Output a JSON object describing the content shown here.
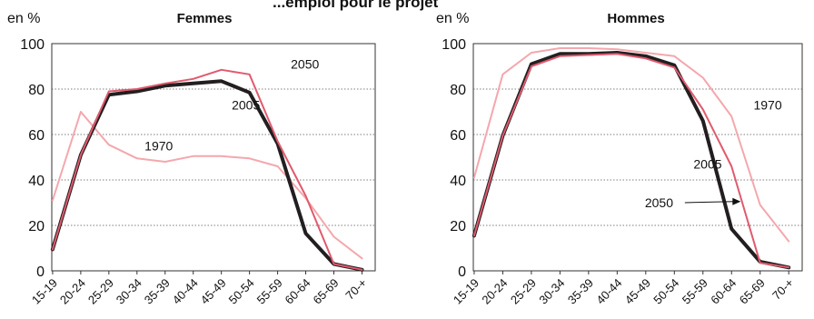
{
  "global_title_fragment": "...emploi pour le projet",
  "chart_data": [
    {
      "type": "line",
      "title": "Femmes",
      "ylabel": "en %",
      "xlabel": "",
      "ylim": [
        0,
        100
      ],
      "yticks": [
        0,
        20,
        40,
        60,
        80,
        100
      ],
      "categories": [
        "15-19",
        "20-24",
        "25-29",
        "30-34",
        "35-39",
        "40-44",
        "45-49",
        "50-54",
        "55-59",
        "60-64",
        "65-69",
        "70-+"
      ],
      "grid": true,
      "series": [
        {
          "name": "1970",
          "color": "#f4a7ad",
          "width": 2,
          "values": [
            31,
            70,
            55.5,
            49.5,
            48,
            50.5,
            50.5,
            49.5,
            46,
            32,
            15,
            5.5
          ]
        },
        {
          "name": "2005",
          "color": "#231f20",
          "width": 4,
          "values": [
            9.5,
            51,
            77.5,
            79,
            81.5,
            82.5,
            83.5,
            78.5,
            56,
            16.5,
            3,
            0.5
          ]
        },
        {
          "name": "2050",
          "color": "#e05a6e",
          "width": 2,
          "values": [
            9.5,
            51,
            79,
            80,
            82.5,
            84.5,
            88.5,
            86.5,
            57,
            33,
            3,
            0.5
          ]
        }
      ],
      "annotations": [
        {
          "text": "2050",
          "x": 8.5,
          "y": 89,
          "series": "2050"
        },
        {
          "text": "2005",
          "x": 6.4,
          "y": 71,
          "series": "2005"
        },
        {
          "text": "1970",
          "x": 3.3,
          "y": 53,
          "series": "1970"
        }
      ]
    },
    {
      "type": "line",
      "title": "Hommes",
      "ylabel": "en %",
      "xlabel": "",
      "ylim": [
        0,
        100
      ],
      "yticks": [
        0,
        20,
        40,
        60,
        80,
        100
      ],
      "categories": [
        "15-19",
        "20-24",
        "25-29",
        "30-34",
        "35-39",
        "40-44",
        "45-49",
        "50-54",
        "55-59",
        "60-64",
        "65-69",
        "70-+"
      ],
      "grid": true,
      "series": [
        {
          "name": "1970",
          "color": "#f4a7ad",
          "width": 2,
          "values": [
            41,
            86.5,
            96,
            98,
            98,
            97.5,
            96,
            94.5,
            85,
            68,
            29,
            13
          ]
        },
        {
          "name": "2005",
          "color": "#231f20",
          "width": 4,
          "values": [
            15.5,
            59.5,
            91,
            95.5,
            95.5,
            96,
            94.5,
            90.5,
            66,
            18.5,
            4,
            1.5
          ]
        },
        {
          "name": "2050",
          "color": "#e05a6e",
          "width": 2,
          "values": [
            15.5,
            59.5,
            90,
            94.5,
            95,
            95.5,
            93.5,
            89.5,
            71,
            46,
            3.5,
            1.5
          ]
        }
      ],
      "annotations": [
        {
          "text": "1970",
          "x": 9.8,
          "y": 71,
          "series": "1970"
        },
        {
          "text": "2005",
          "x": 7.7,
          "y": 45,
          "series": "2005"
        },
        {
          "text": "2050",
          "x": 6.0,
          "y": 28,
          "series": "2050",
          "arrow_to": [
            9.35,
            30.5
          ]
        }
      ]
    }
  ]
}
